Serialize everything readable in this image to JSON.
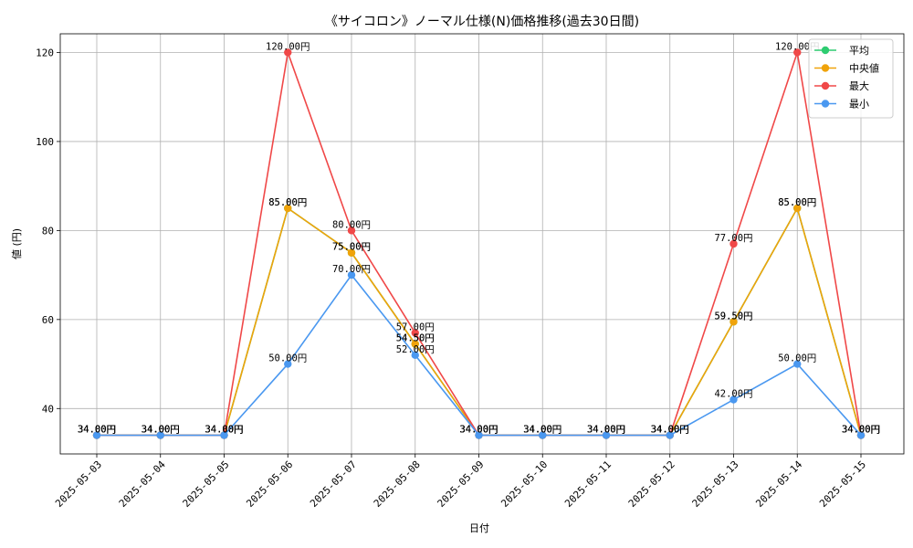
{
  "chart_data": {
    "type": "line",
    "title": "《サイコロン》ノーマル仕様(N)価格推移(過去30日間)",
    "xlabel": "日付",
    "ylabel": "値 (円)",
    "categories": [
      "2025-05-03",
      "2025-05-04",
      "2025-05-05",
      "2025-05-06",
      "2025-05-07",
      "2025-05-08",
      "2025-05-09",
      "2025-05-10",
      "2025-05-11",
      "2025-05-12",
      "2025-05-13",
      "2025-05-14",
      "2025-05-15"
    ],
    "ylim": [
      29.8,
      124.2
    ],
    "yticks": [
      40,
      60,
      80,
      100,
      120
    ],
    "grid": true,
    "legend_position": "top-right",
    "series": [
      {
        "name": "平均",
        "color": "#2ecc71",
        "values": [
          34,
          34,
          34,
          85,
          75,
          54.5,
          34,
          34,
          34,
          34,
          59.5,
          85,
          34
        ]
      },
      {
        "name": "中央値",
        "color": "#f0a30a",
        "values": [
          34,
          34,
          34,
          85,
          75,
          54.5,
          34,
          34,
          34,
          34,
          59.5,
          85,
          34
        ]
      },
      {
        "name": "最大",
        "color": "#f04848",
        "values": [
          34,
          34,
          34,
          120,
          80,
          57,
          34,
          34,
          34,
          34,
          77,
          120,
          34
        ]
      },
      {
        "name": "最小",
        "color": "#4a98f0",
        "values": [
          34,
          34,
          34,
          50,
          70,
          52,
          34,
          34,
          34,
          34,
          42,
          50,
          34
        ]
      }
    ],
    "value_suffix": "円"
  }
}
